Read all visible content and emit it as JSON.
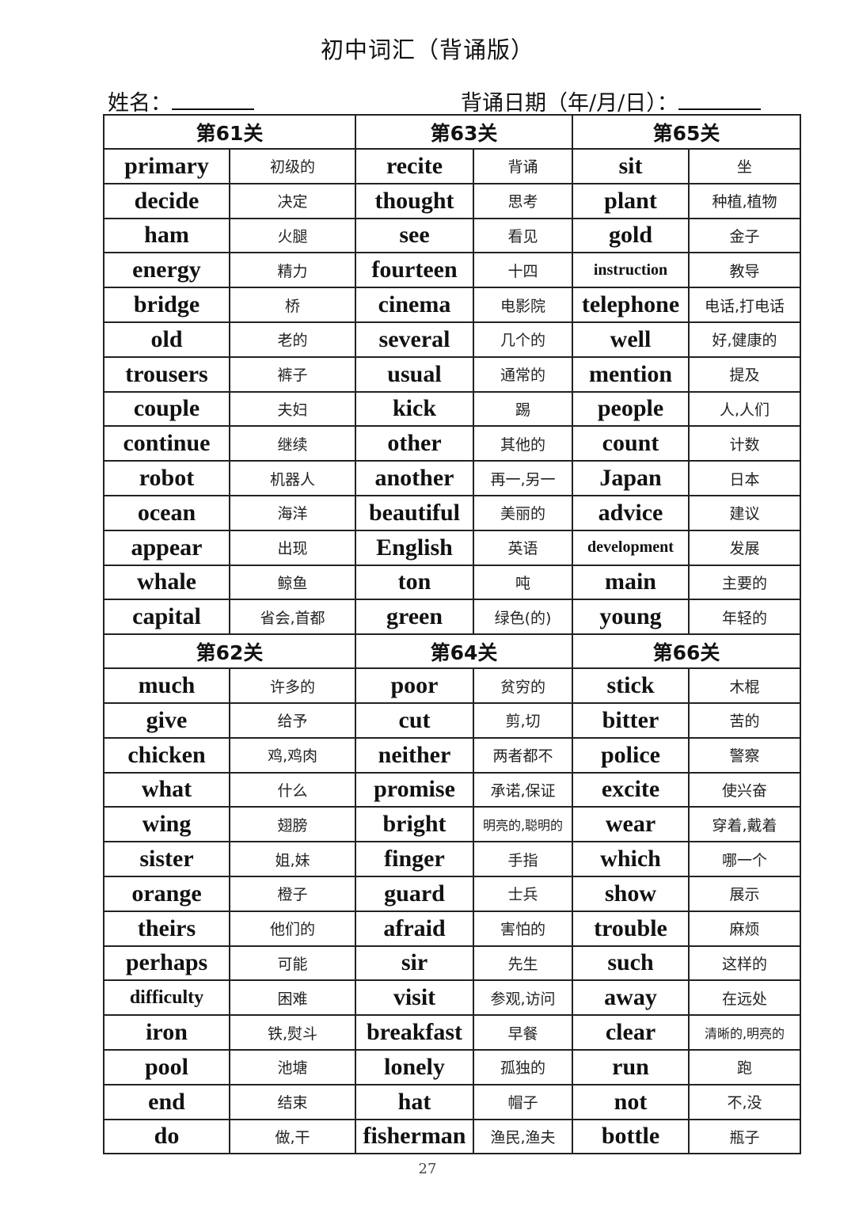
{
  "title": "初中词汇（背诵版）",
  "name_label": "姓名：",
  "date_label": "背诵日期（年/月/日）：",
  "page_number": "27",
  "blocks": [
    [
      {
        "level": "第61关",
        "words": [
          [
            "primary",
            "初级的"
          ],
          [
            "decide",
            "决定"
          ],
          [
            "ham",
            "火腿"
          ],
          [
            "energy",
            "精力"
          ],
          [
            "bridge",
            "桥"
          ],
          [
            "old",
            "老的"
          ],
          [
            "trousers",
            "裤子"
          ],
          [
            "couple",
            "夫妇"
          ],
          [
            "continue",
            "继续"
          ],
          [
            "robot",
            "机器人"
          ],
          [
            "ocean",
            "海洋"
          ],
          [
            "appear",
            "出现"
          ],
          [
            "whale",
            "鲸鱼"
          ],
          [
            "capital",
            "省会,首都"
          ]
        ]
      },
      {
        "level": "第63关",
        "words": [
          [
            "recite",
            "背诵"
          ],
          [
            "thought",
            "思考"
          ],
          [
            "see",
            "看见"
          ],
          [
            "fourteen",
            "十四"
          ],
          [
            "cinema",
            "电影院"
          ],
          [
            "several",
            "几个的"
          ],
          [
            "usual",
            "通常的"
          ],
          [
            "kick",
            "踢"
          ],
          [
            "other",
            "其他的"
          ],
          [
            "another",
            "再一,另一"
          ],
          [
            "beautiful",
            "美丽的"
          ],
          [
            "English",
            "英语"
          ],
          [
            "ton",
            "吨"
          ],
          [
            "green",
            "绿色(的)"
          ]
        ]
      },
      {
        "level": "第65关",
        "words": [
          [
            "sit",
            "坐"
          ],
          [
            "plant",
            "种植,植物"
          ],
          [
            "gold",
            "金子"
          ],
          [
            "instruction",
            "教导"
          ],
          [
            "telephone",
            "电话,打电话"
          ],
          [
            "well",
            "好,健康的"
          ],
          [
            "mention",
            "提及"
          ],
          [
            "people",
            "人,人们"
          ],
          [
            "count",
            "计数"
          ],
          [
            "Japan",
            "日本"
          ],
          [
            "advice",
            "建议"
          ],
          [
            "development",
            "发展"
          ],
          [
            "main",
            "主要的"
          ],
          [
            "young",
            "年轻的"
          ]
        ]
      }
    ],
    [
      {
        "level": "第62关",
        "words": [
          [
            "much",
            "许多的"
          ],
          [
            "give",
            "给予"
          ],
          [
            "chicken",
            "鸡,鸡肉"
          ],
          [
            "what",
            "什么"
          ],
          [
            "wing",
            "翅膀"
          ],
          [
            "sister",
            "姐,妹"
          ],
          [
            "orange",
            "橙子"
          ],
          [
            "theirs",
            "他们的"
          ],
          [
            "perhaps",
            "可能"
          ],
          [
            "difficulty",
            "困难"
          ],
          [
            "iron",
            "铁,熨斗"
          ],
          [
            "pool",
            "池塘"
          ],
          [
            "end",
            "结束"
          ],
          [
            "do",
            "做,干"
          ]
        ]
      },
      {
        "level": "第64关",
        "words": [
          [
            "poor",
            "贫穷的"
          ],
          [
            "cut",
            "剪,切"
          ],
          [
            "neither",
            "两者都不"
          ],
          [
            "promise",
            "承诺,保证"
          ],
          [
            "bright",
            "明亮的,聪明的"
          ],
          [
            "finger",
            "手指"
          ],
          [
            "guard",
            "士兵"
          ],
          [
            "afraid",
            "害怕的"
          ],
          [
            "sir",
            "先生"
          ],
          [
            "visit",
            "参观,访问"
          ],
          [
            "breakfast",
            "早餐"
          ],
          [
            "lonely",
            "孤独的"
          ],
          [
            "hat",
            "帽子"
          ],
          [
            "fisherman",
            "渔民,渔夫"
          ]
        ]
      },
      {
        "level": "第66关",
        "words": [
          [
            "stick",
            "木棍"
          ],
          [
            "bitter",
            "苦的"
          ],
          [
            "police",
            "警察"
          ],
          [
            "excite",
            "使兴奋"
          ],
          [
            "wear",
            "穿着,戴着"
          ],
          [
            "which",
            "哪一个"
          ],
          [
            "show",
            "展示"
          ],
          [
            "trouble",
            "麻烦"
          ],
          [
            "such",
            "这样的"
          ],
          [
            "away",
            "在远处"
          ],
          [
            "clear",
            "清晰的,明亮的"
          ],
          [
            "run",
            "跑"
          ],
          [
            "not",
            "不,没"
          ],
          [
            "bottle",
            "瓶子"
          ]
        ]
      }
    ]
  ]
}
